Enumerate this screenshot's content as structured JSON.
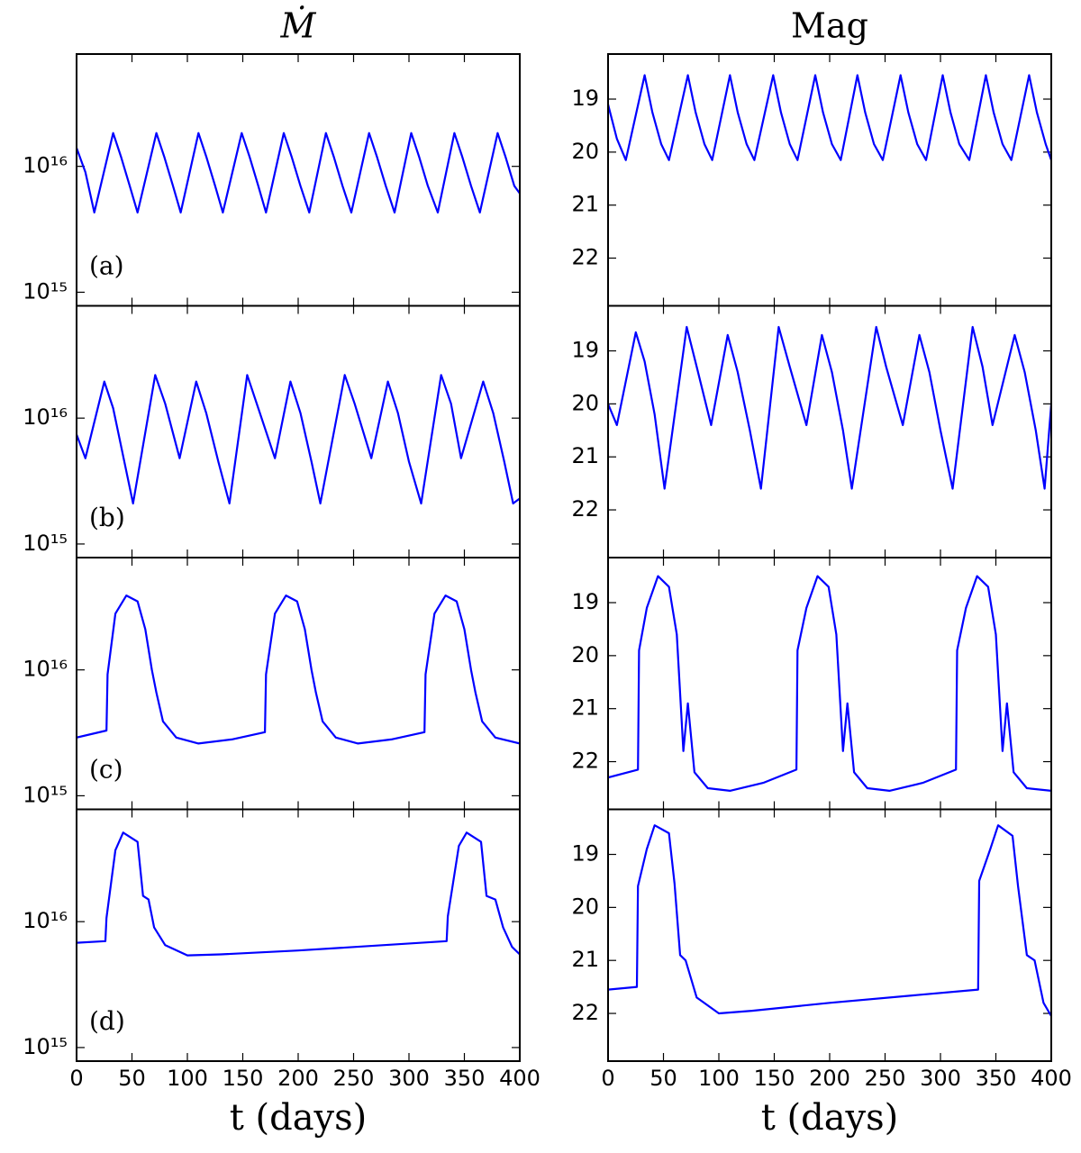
{
  "chart_data": [
    {
      "type": "line",
      "title": "Ṁ",
      "annotation": "(a)",
      "yscale": "log",
      "xlim": [
        0,
        400
      ],
      "xticks": [
        0,
        50,
        100,
        150,
        200,
        250,
        300,
        350,
        400
      ],
      "show_xtick_labels": false,
      "ylim": [
        780000000000000.0,
        7.8e+16
      ],
      "yticks": [
        {
          "value": 1000000000000000.0,
          "label": "10¹⁵"
        },
        {
          "value": 1e+16,
          "label": "10¹⁶"
        }
      ],
      "x": [
        0,
        8,
        16,
        33,
        40,
        48,
        55,
        72,
        79,
        87,
        94,
        110,
        117,
        125,
        132,
        149,
        156,
        164,
        171,
        187,
        194,
        202,
        210,
        225,
        232,
        240,
        248,
        264,
        271,
        279,
        287,
        302,
        309,
        317,
        326,
        341,
        348,
        356,
        364,
        380,
        387,
        395,
        400
      ],
      "series": [
        {
          "color": "#0000ff",
          "values": [
            1.4e+16,
            9000000000000000.0,
            4300000000000000.0,
            1.84e+16,
            1.2e+16,
            7000000000000000.0,
            4300000000000000.0,
            1.84e+16,
            1.2e+16,
            7000000000000000.0,
            4300000000000000.0,
            1.84e+16,
            1.2e+16,
            7000000000000000.0,
            4300000000000000.0,
            1.84e+16,
            1.2e+16,
            7000000000000000.0,
            4300000000000000.0,
            1.84e+16,
            1.2e+16,
            7000000000000000.0,
            4300000000000000.0,
            1.84e+16,
            1.2e+16,
            7000000000000000.0,
            4300000000000000.0,
            1.84e+16,
            1.2e+16,
            7000000000000000.0,
            4300000000000000.0,
            1.84e+16,
            1.2e+16,
            7000000000000000.0,
            4300000000000000.0,
            1.84e+16,
            1.2e+16,
            7000000000000000.0,
            4300000000000000.0,
            1.84e+16,
            1.2e+16,
            7000000000000000.0,
            6100000000000000.0
          ]
        }
      ]
    },
    {
      "type": "line",
      "title": "Mag",
      "yscale": "linear",
      "xlim": [
        0,
        400
      ],
      "xticks": [
        0,
        50,
        100,
        150,
        200,
        250,
        300,
        350,
        400
      ],
      "show_xtick_labels": false,
      "ylim": [
        22.9,
        18.15
      ],
      "yticks": [
        19,
        20,
        21,
        22
      ],
      "x": [
        0,
        8,
        16,
        33,
        40,
        48,
        55,
        72,
        79,
        87,
        94,
        110,
        117,
        125,
        132,
        149,
        156,
        164,
        171,
        187,
        194,
        202,
        210,
        225,
        232,
        240,
        248,
        264,
        271,
        279,
        287,
        302,
        309,
        317,
        326,
        341,
        348,
        356,
        364,
        380,
        387,
        395,
        400
      ],
      "series": [
        {
          "color": "#0000ff",
          "values": [
            19.1,
            19.75,
            20.15,
            18.55,
            19.25,
            19.85,
            20.15,
            18.55,
            19.25,
            19.85,
            20.15,
            18.55,
            19.25,
            19.85,
            20.15,
            18.55,
            19.25,
            19.85,
            20.15,
            18.55,
            19.25,
            19.85,
            20.15,
            18.55,
            19.25,
            19.85,
            20.15,
            18.55,
            19.25,
            19.85,
            20.15,
            18.55,
            19.25,
            19.85,
            20.15,
            18.55,
            19.25,
            19.85,
            20.15,
            18.55,
            19.25,
            19.85,
            20.15
          ]
        }
      ]
    },
    {
      "type": "line",
      "annotation": "(b)",
      "yscale": "log",
      "xlim": [
        0,
        400
      ],
      "xticks": [
        0,
        50,
        100,
        150,
        200,
        250,
        300,
        350,
        400
      ],
      "show_xtick_labels": false,
      "ylim": [
        780000000000000.0,
        7.8e+16
      ],
      "yticks": [
        {
          "value": 1000000000000000.0,
          "label": "10¹⁵"
        },
        {
          "value": 1e+16,
          "label": "10¹⁶"
        }
      ],
      "x": [
        0,
        8,
        25,
        33,
        42,
        51,
        71,
        80,
        93,
        108,
        117,
        128,
        138,
        154,
        164,
        179,
        193,
        202,
        212,
        220,
        242,
        251,
        266,
        281,
        290,
        300,
        311,
        329,
        338,
        347,
        367,
        376,
        386,
        394,
        400
      ],
      "series": [
        {
          "color": "#0000ff",
          "values": [
            7400000000000000.0,
            4800000000000000.0,
            1.95e+16,
            1.2e+16,
            5000000000000000.0,
            2100000000000000.0,
            2.2e+16,
            1.3e+16,
            4800000000000000.0,
            1.95e+16,
            1.1e+16,
            4500000000000000.0,
            2100000000000000.0,
            2.2e+16,
            1.2e+16,
            4800000000000000.0,
            1.95e+16,
            1.1e+16,
            4500000000000000.0,
            2100000000000000.0,
            2.2e+16,
            1.3e+16,
            4800000000000000.0,
            1.95e+16,
            1.1e+16,
            4500000000000000.0,
            2100000000000000.0,
            2.2e+16,
            1.3e+16,
            4800000000000000.0,
            1.95e+16,
            1.1e+16,
            4500000000000000.0,
            2100000000000000.0,
            2300000000000000.0
          ]
        }
      ]
    },
    {
      "type": "line",
      "yscale": "linear",
      "xlim": [
        0,
        400
      ],
      "xticks": [
        0,
        50,
        100,
        150,
        200,
        250,
        300,
        350,
        400
      ],
      "show_xtick_labels": false,
      "ylim": [
        22.9,
        18.15
      ],
      "yticks": [
        19,
        20,
        21,
        22
      ],
      "x": [
        0,
        8,
        25,
        33,
        42,
        51,
        71,
        80,
        93,
        108,
        117,
        128,
        138,
        154,
        164,
        179,
        193,
        202,
        212,
        220,
        242,
        251,
        266,
        281,
        290,
        300,
        311,
        329,
        338,
        347,
        367,
        376,
        386,
        394,
        400
      ],
      "series": [
        {
          "color": "#0000ff",
          "values": [
            20.0,
            20.4,
            18.65,
            19.2,
            20.2,
            21.6,
            18.55,
            19.3,
            20.4,
            18.7,
            19.4,
            20.5,
            21.6,
            18.55,
            19.3,
            20.4,
            18.7,
            19.4,
            20.5,
            21.6,
            18.55,
            19.3,
            20.4,
            18.7,
            19.4,
            20.5,
            21.6,
            18.55,
            19.3,
            20.4,
            18.7,
            19.4,
            20.5,
            21.6,
            20.0
          ]
        }
      ]
    },
    {
      "type": "line",
      "annotation": "(c)",
      "yscale": "log",
      "xlim": [
        0,
        400
      ],
      "xticks": [
        0,
        50,
        100,
        150,
        200,
        250,
        300,
        350,
        400
      ],
      "show_xtick_labels": false,
      "ylim": [
        780000000000000.0,
        7.8e+16
      ],
      "yticks": [
        {
          "value": 1000000000000000.0,
          "label": "10¹⁵"
        },
        {
          "value": 1e+16,
          "label": "10¹⁶"
        }
      ],
      "x": [
        0,
        27,
        28,
        35,
        45,
        55,
        62,
        68,
        72,
        78,
        90,
        110,
        140,
        170,
        171,
        179,
        189,
        199,
        206,
        212,
        216,
        222,
        234,
        254,
        284,
        314,
        315,
        323,
        333,
        343,
        350,
        356,
        360,
        366,
        378,
        400
      ],
      "series": [
        {
          "color": "#0000ff",
          "values": [
            2900000000000000.0,
            3300000000000000.0,
            9200000000000000.0,
            2.8e+16,
            3.9e+16,
            3.5e+16,
            2.1e+16,
            1e+16,
            6600000000000000.0,
            3900000000000000.0,
            2900000000000000.0,
            2600000000000000.0,
            2800000000000000.0,
            3200000000000000.0,
            9200000000000000.0,
            2.8e+16,
            3.9e+16,
            3.5e+16,
            2.1e+16,
            1e+16,
            6600000000000000.0,
            3900000000000000.0,
            2900000000000000.0,
            2600000000000000.0,
            2800000000000000.0,
            3200000000000000.0,
            9200000000000000.0,
            2.8e+16,
            3.9e+16,
            3.5e+16,
            2.1e+16,
            1e+16,
            6600000000000000.0,
            3900000000000000.0,
            2900000000000000.0,
            2600000000000000.0
          ]
        }
      ]
    },
    {
      "type": "line",
      "yscale": "linear",
      "xlim": [
        0,
        400
      ],
      "xticks": [
        0,
        50,
        100,
        150,
        200,
        250,
        300,
        350,
        400
      ],
      "show_xtick_labels": false,
      "ylim": [
        22.9,
        18.15
      ],
      "yticks": [
        19,
        20,
        21,
        22
      ],
      "x": [
        0,
        27,
        28,
        35,
        45,
        55,
        62,
        68,
        72,
        78,
        90,
        110,
        140,
        170,
        171,
        179,
        189,
        199,
        206,
        212,
        216,
        222,
        234,
        254,
        284,
        314,
        315,
        323,
        333,
        343,
        350,
        356,
        360,
        366,
        378,
        400
      ],
      "series": [
        {
          "color": "#0000ff",
          "values": [
            22.3,
            22.15,
            19.9,
            19.1,
            18.5,
            18.7,
            19.6,
            21.8,
            20.9,
            22.2,
            22.5,
            22.55,
            22.4,
            22.15,
            19.9,
            19.1,
            18.5,
            18.7,
            19.6,
            21.8,
            20.9,
            22.2,
            22.5,
            22.55,
            22.4,
            22.15,
            19.9,
            19.1,
            18.5,
            18.7,
            19.6,
            21.8,
            20.9,
            22.2,
            22.5,
            22.55
          ]
        }
      ]
    },
    {
      "type": "line",
      "annotation": "(d)",
      "xlabel": "t (days)",
      "yscale": "log",
      "xlim": [
        0,
        400
      ],
      "xticks": [
        0,
        50,
        100,
        150,
        200,
        250,
        300,
        350,
        400
      ],
      "show_xtick_labels": true,
      "ylim": [
        780000000000000.0,
        7.8e+16
      ],
      "yticks": [
        {
          "value": 1000000000000000.0,
          "label": "10¹⁵"
        },
        {
          "value": 1e+16,
          "label": "10¹⁶"
        }
      ],
      "x": [
        0,
        26,
        27,
        35,
        42,
        55,
        60,
        65,
        70,
        80,
        100,
        130,
        200,
        334,
        335,
        345,
        352,
        365,
        370,
        378,
        385,
        393,
        400
      ],
      "series": [
        {
          "color": "#0000ff",
          "values": [
            6800000000000000.0,
            7000000000000000.0,
            1.07e+16,
            3.7e+16,
            5.1e+16,
            4.3e+16,
            1.6e+16,
            1.5e+16,
            9000000000000000.0,
            6500000000000000.0,
            5400000000000000.0,
            5500000000000000.0,
            5900000000000000.0,
            7000000000000000.0,
            1.1e+16,
            4e+16,
            5.1e+16,
            4.3e+16,
            1.6e+16,
            1.5e+16,
            9000000000000000.0,
            6300000000000000.0,
            5500000000000000.0
          ]
        }
      ]
    },
    {
      "type": "line",
      "xlabel": "t (days)",
      "yscale": "linear",
      "xlim": [
        0,
        400
      ],
      "xticks": [
        0,
        50,
        100,
        150,
        200,
        250,
        300,
        350,
        400
      ],
      "show_xtick_labels": true,
      "ylim": [
        22.9,
        18.15
      ],
      "yticks": [
        19,
        20,
        21,
        22
      ],
      "x": [
        0,
        26,
        27,
        35,
        42,
        55,
        60,
        65,
        70,
        80,
        100,
        130,
        200,
        334,
        335,
        345,
        352,
        365,
        370,
        378,
        385,
        393,
        400
      ],
      "series": [
        {
          "color": "#0000ff",
          "values": [
            21.55,
            21.5,
            19.6,
            18.9,
            18.45,
            18.6,
            19.55,
            20.9,
            21.0,
            21.7,
            22.0,
            21.95,
            21.8,
            21.55,
            19.5,
            18.9,
            18.45,
            18.65,
            19.6,
            20.9,
            21.0,
            21.8,
            22.05
          ]
        }
      ]
    }
  ]
}
